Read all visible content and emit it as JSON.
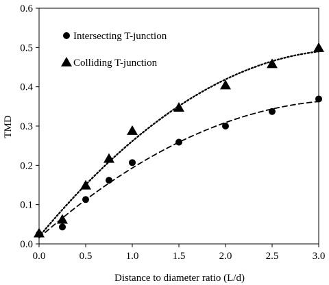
{
  "chart_data": {
    "type": "scatter",
    "xlabel": "Distance to diameter ratio (L/d)",
    "ylabel": "TMD",
    "xlim": [
      0,
      3
    ],
    "ylim": [
      0,
      0.6
    ],
    "x_ticks": [
      "0.0",
      "0.5",
      "1.0",
      "1.5",
      "2.0",
      "2.5",
      "3.0"
    ],
    "y_ticks": [
      "0.0",
      "0.1",
      "0.2",
      "0.3",
      "0.4",
      "0.5",
      "0.6"
    ],
    "grid": false,
    "legend_position": "top-left",
    "series": [
      {
        "name": "Intersecting T-junction",
        "marker": "circle",
        "trendline": "dashed",
        "x": [
          0.0,
          0.25,
          0.5,
          0.75,
          1.0,
          1.5,
          2.0,
          2.5,
          3.0
        ],
        "y": [
          0.025,
          0.043,
          0.113,
          0.162,
          0.207,
          0.259,
          0.3,
          0.337,
          0.369
        ]
      },
      {
        "name": "Colliding T-junction",
        "marker": "triangle",
        "trendline": "dotted",
        "x": [
          0.0,
          0.25,
          0.5,
          0.75,
          1.0,
          1.5,
          2.0,
          2.5,
          3.0
        ],
        "y": [
          0.027,
          0.062,
          0.149,
          0.217,
          0.288,
          0.347,
          0.404,
          0.458,
          0.499
        ]
      }
    ]
  }
}
